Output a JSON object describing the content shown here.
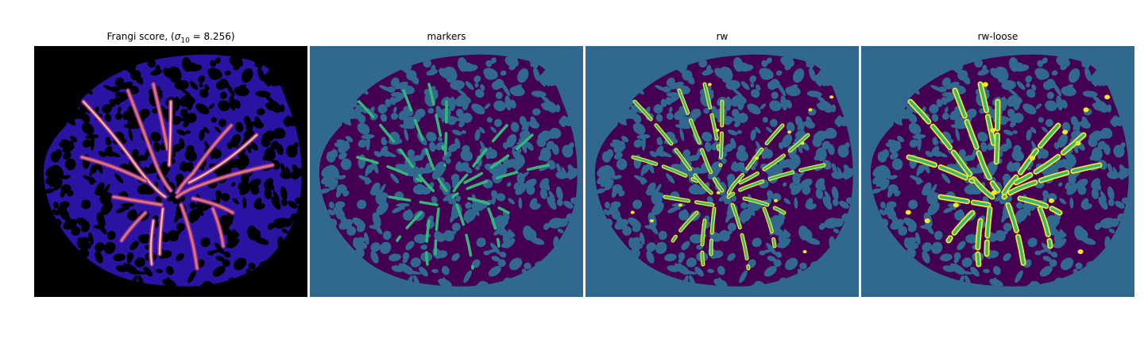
{
  "panels": [
    {
      "title": "Frangi score, (",
      "title_math": "σ",
      "title_sub": "10",
      "title_rest": " = 8.256)",
      "style": "frangi"
    },
    {
      "title": "markers",
      "style": "markers"
    },
    {
      "title": "rw",
      "style": "rw"
    },
    {
      "title": "rw-loose",
      "style": "rw-loose"
    }
  ],
  "colors": {
    "black": "#000000",
    "frangi_tissue": "#2a13a3",
    "frangi_vessel_mid": "#8a2a9c",
    "frangi_vessel_hot": "#f08a6a",
    "frangi_vessel_peak": "#fde6b6",
    "teal_background": "#31688e",
    "dark_purple": "#440154",
    "marker_green": "#35b779",
    "rw_yellow": "#fde725"
  }
}
